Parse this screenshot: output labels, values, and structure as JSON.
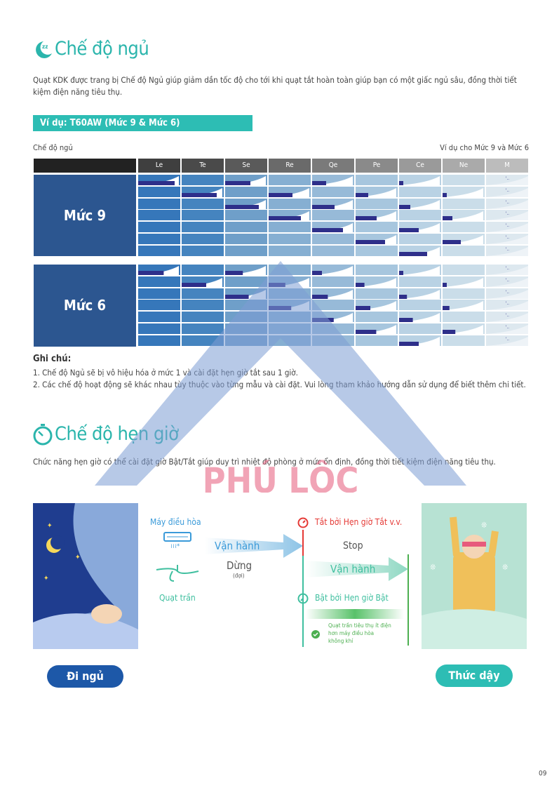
{
  "sleep": {
    "title": "Chế độ ngủ",
    "intro": "Quạt KDK được trang bị Chế độ Ngủ giúp giảm dần tốc độ cho tới khi quạt tắt hoàn toàn giúp bạn có một giấc ngủ sâu, đồng thời tiết kiệm điện năng tiêu thụ.",
    "example_banner": "Ví dụ: T60AW (Mức 9 & Mức 6)",
    "table_left_label": "Chế độ ngủ",
    "table_right_label": "Ví dụ cho Mức 9 và Mức 6",
    "columns": [
      "Le",
      "Te",
      "Se",
      "Re",
      "Qe",
      "Pe",
      "Ce",
      "Ne",
      "M"
    ],
    "levels": [
      "Mức 9",
      "Mức 6"
    ],
    "notes_title": "Ghi chú:",
    "notes": [
      "1. Chế độ Ngủ sẽ bị vô hiệu hóa ở mức 1 và cài đặt hẹn giờ tắt sau 1 giờ.",
      "2. Các chế độ hoạt động sẽ khác nhau tùy thuộc vào từng mẫu và cài đặt. Vui lòng tham khảo hướng dẫn sử dụng để biết thêm chi tiết."
    ]
  },
  "timer": {
    "title": "Chế độ hẹn giờ",
    "intro": "Chức năng hẹn giờ có thể cài đặt giờ Bật/Tắt giúp duy trì nhiệt độ phòng ở mức ổn định, đồng thời tiết kiệm điện năng tiêu thụ.",
    "ac_label": "Máy điều hòa",
    "fan_label": "Quạt trần",
    "run1": "Vận hành",
    "stop_vi": "Dừng",
    "stop_sub": "(đợi)",
    "off_timer": "Tắt bởi Hẹn giờ Tắt v.v.",
    "stop_en": "Stop",
    "run2": "Vận hành",
    "on_timer": "Bật bởi Hẹn giờ Bật",
    "saving_note": [
      "Quạt trần tiêu thụ ít điện",
      "hơn máy điều hòa",
      "không khí"
    ],
    "sleep_button": "Đi ngủ",
    "wake_button": "Thức dậy"
  },
  "watermark": "PHÚ LỘC",
  "page_number": "09",
  "colors": {
    "teal": "#2bb5ac",
    "navy": "#2c5690",
    "bar": "#2e2f8a",
    "red": "#e53935",
    "green": "#4caf50"
  }
}
